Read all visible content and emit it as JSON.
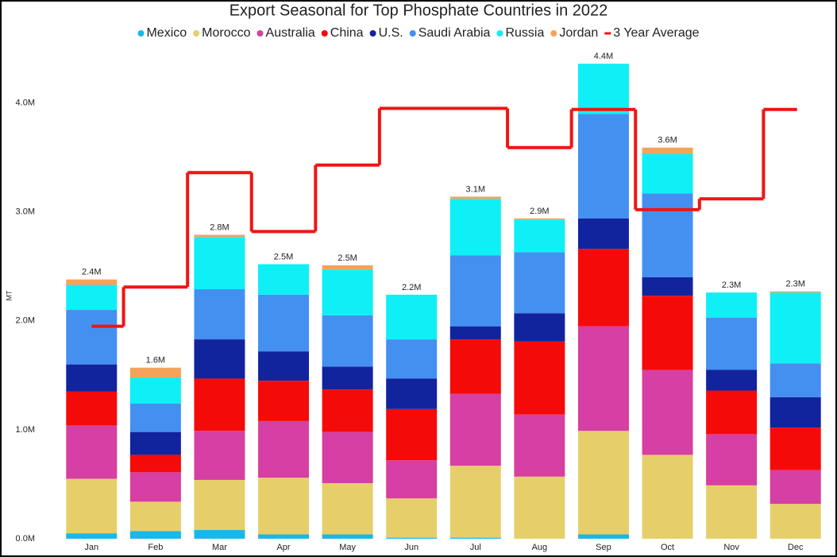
{
  "chart_data": {
    "type": "bar",
    "stacked": true,
    "title": "Export Seasonal for Top Phosphate Countries in 2022",
    "y_label": "MT",
    "categories": [
      "Jan",
      "Feb",
      "Mar",
      "Apr",
      "May",
      "Jun",
      "Jul",
      "Aug",
      "Sep",
      "Oct",
      "Nov",
      "Dec"
    ],
    "ylim": [
      0,
      4500000
    ],
    "yticks": [
      {
        "value": 0,
        "label": "0.0M"
      },
      {
        "value": 1000000,
        "label": "1.0M"
      },
      {
        "value": 2000000,
        "label": "2.0M"
      },
      {
        "value": 3000000,
        "label": "3.0M"
      },
      {
        "value": 4000000,
        "label": "4.0M"
      }
    ],
    "series": [
      {
        "name": "Mexico",
        "color": "#1ab8e8",
        "values": [
          50000,
          70000,
          80000,
          40000,
          40000,
          10000,
          10000,
          0,
          40000,
          0,
          0,
          0
        ]
      },
      {
        "name": "Morocco",
        "color": "#e6cf6a",
        "values": [
          500000,
          270000,
          460000,
          520000,
          470000,
          360000,
          660000,
          570000,
          950000,
          770000,
          490000,
          320000
        ]
      },
      {
        "name": "Australia",
        "color": "#d63fa3",
        "values": [
          490000,
          270000,
          450000,
          520000,
          470000,
          350000,
          660000,
          570000,
          960000,
          780000,
          470000,
          310000
        ]
      },
      {
        "name": "China",
        "color": "#f50a0a",
        "values": [
          310000,
          160000,
          480000,
          370000,
          390000,
          470000,
          500000,
          670000,
          710000,
          680000,
          400000,
          390000
        ]
      },
      {
        "name": "U.S.",
        "color": "#12239e",
        "values": [
          250000,
          210000,
          360000,
          270000,
          210000,
          280000,
          120000,
          260000,
          280000,
          170000,
          190000,
          280000
        ]
      },
      {
        "name": "Saudi Arabia",
        "color": "#4390f0",
        "values": [
          500000,
          260000,
          460000,
          520000,
          470000,
          360000,
          650000,
          560000,
          960000,
          770000,
          480000,
          310000
        ]
      },
      {
        "name": "Russia",
        "color": "#0ef0f5",
        "values": [
          230000,
          240000,
          480000,
          280000,
          420000,
          410000,
          520000,
          300000,
          460000,
          360000,
          230000,
          650000
        ]
      },
      {
        "name": "Jordan",
        "color": "#f5a35a",
        "values": [
          50000,
          90000,
          20000,
          0,
          40000,
          0,
          20000,
          10000,
          0,
          60000,
          0,
          10000
        ]
      },
      {
        "name": "3 Year Average",
        "color": "#f01414",
        "type": "line",
        "values": [
          1950000,
          2310000,
          3360000,
          2820000,
          3430000,
          3950000,
          3950000,
          3590000,
          3940000,
          3020000,
          3120000,
          3940000
        ]
      }
    ],
    "totals": {
      "values": [
        2380000,
        1570000,
        2790000,
        2520000,
        2510000,
        2240000,
        3140000,
        2940000,
        4360000,
        3590000,
        2260000,
        2270000
      ],
      "value_labels": [
        "2.4M",
        "1.6M",
        "2.8M",
        "2.5M",
        "2.5M",
        "2.2M",
        "3.1M",
        "2.9M",
        "4.4M",
        "3.6M",
        "2.3M",
        "2.3M"
      ]
    }
  }
}
